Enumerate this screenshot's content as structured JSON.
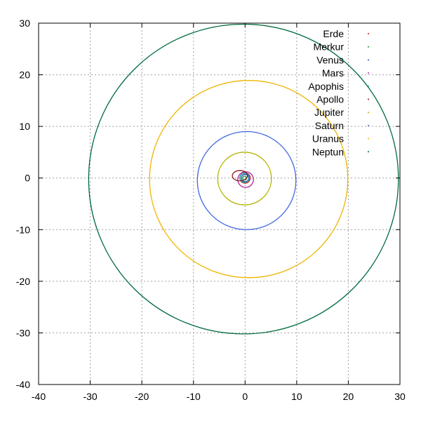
{
  "chart_data": {
    "type": "scatter",
    "xlim": [
      -40,
      30
    ],
    "ylim": [
      -40,
      30
    ],
    "x_ticks": [
      "-40",
      "-30",
      "-20",
      "-10",
      "0",
      "10",
      "20",
      "30"
    ],
    "y_ticks": [
      "30",
      "20",
      "10",
      "0",
      "-10",
      "-20",
      "-30",
      "-40"
    ],
    "grid": true,
    "legend_position": "top-right",
    "series": [
      {
        "name": "Erde",
        "color": "#d61f1f",
        "orbit": {
          "cx": 0.0,
          "cy": 0.0,
          "rx": 1.0,
          "ry": 1.0
        }
      },
      {
        "name": "Merkur",
        "color": "#159a36",
        "orbit": {
          "cx": -0.08,
          "cy": -0.02,
          "rx": 0.39,
          "ry": 0.38
        }
      },
      {
        "name": "Venus",
        "color": "#2a4fc4",
        "orbit": {
          "cx": 0.0,
          "cy": 0.0,
          "rx": 0.72,
          "ry": 0.72
        }
      },
      {
        "name": "Mars",
        "color": "#b3249b",
        "orbit": {
          "cx": 0.1,
          "cy": -0.3,
          "rx": 1.52,
          "ry": 1.51
        }
      },
      {
        "name": "Apophis",
        "color": "#13a3a3",
        "orbit": {
          "cx": -0.08,
          "cy": 0.05,
          "rx": 0.92,
          "ry": 0.89
        }
      },
      {
        "name": "Apollo",
        "color": "#8b1a1a",
        "orbit": {
          "cx": -1.0,
          "cy": 0.45,
          "rx": 1.47,
          "ry": 1.0
        }
      },
      {
        "name": "Jupiter",
        "color": "#b5b300",
        "orbit": {
          "cx": -0.1,
          "cy": -0.1,
          "rx": 5.2,
          "ry": 5.1
        }
      },
      {
        "name": "Saturn",
        "color": "#4169e1",
        "orbit": {
          "cx": 0.3,
          "cy": -0.5,
          "rx": 9.55,
          "ry": 9.5
        }
      },
      {
        "name": "Uranus",
        "color": "#f0b400",
        "orbit": {
          "cx": 0.7,
          "cy": -0.2,
          "rx": 19.2,
          "ry": 19.1
        }
      },
      {
        "name": "Neptun",
        "color": "#006b3c",
        "orbit": {
          "cx": -0.3,
          "cy": -0.2,
          "rx": 30.0,
          "ry": 30.0
        }
      }
    ]
  }
}
